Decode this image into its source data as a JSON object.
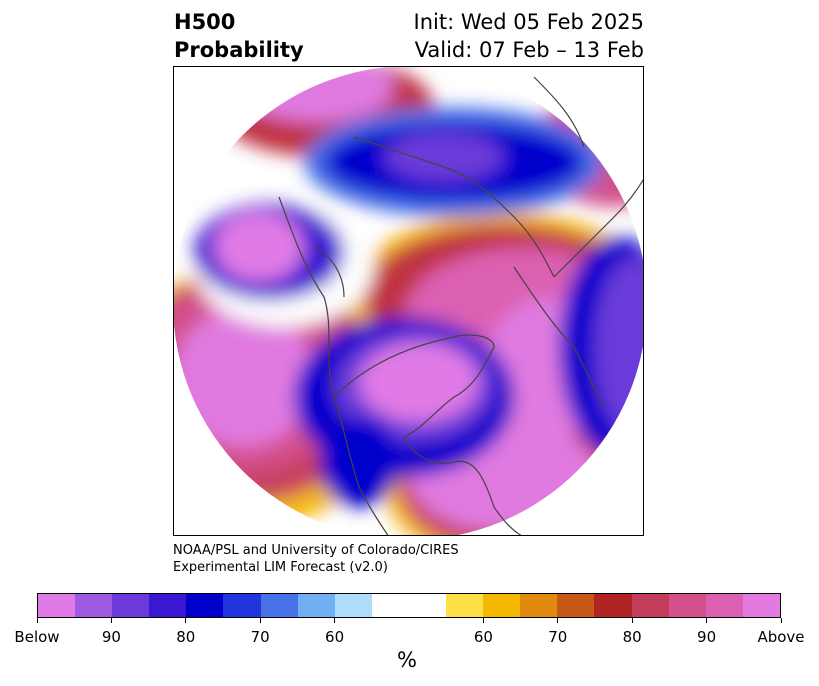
{
  "title": {
    "left_line1": "H500",
    "left_line2": "Probability",
    "right_line1": "Init: Wed 05 Feb 2025",
    "right_line2": "Valid: 07 Feb – 13 Feb"
  },
  "credit": {
    "line1": "NOAA/PSL and University of Colorado/CIRES",
    "line2": "Experimental LIM Forecast (v2.0)"
  },
  "colorbar": {
    "colors": [
      "#e07ae6",
      "#9e5ae2",
      "#6b3ad8",
      "#3a18d2",
      "#0000cc",
      "#2036dc",
      "#4872e8",
      "#70b0f2",
      "#aedcfa",
      "#ffffff",
      "#ffffff",
      "#fde048",
      "#f4b800",
      "#e08a10",
      "#c85818",
      "#b02424",
      "#c43c5c",
      "#d4508c",
      "#dc60b2",
      "#e47ae0"
    ],
    "tick_labels": [
      "Below",
      "90",
      "80",
      "70",
      "60",
      "60",
      "70",
      "80",
      "90",
      "Above"
    ],
    "unit_label": "%"
  },
  "map": {
    "projection": "polar-stereographic-north",
    "below_color": "#e07ae6",
    "above_color": "#e47ae0"
  }
}
